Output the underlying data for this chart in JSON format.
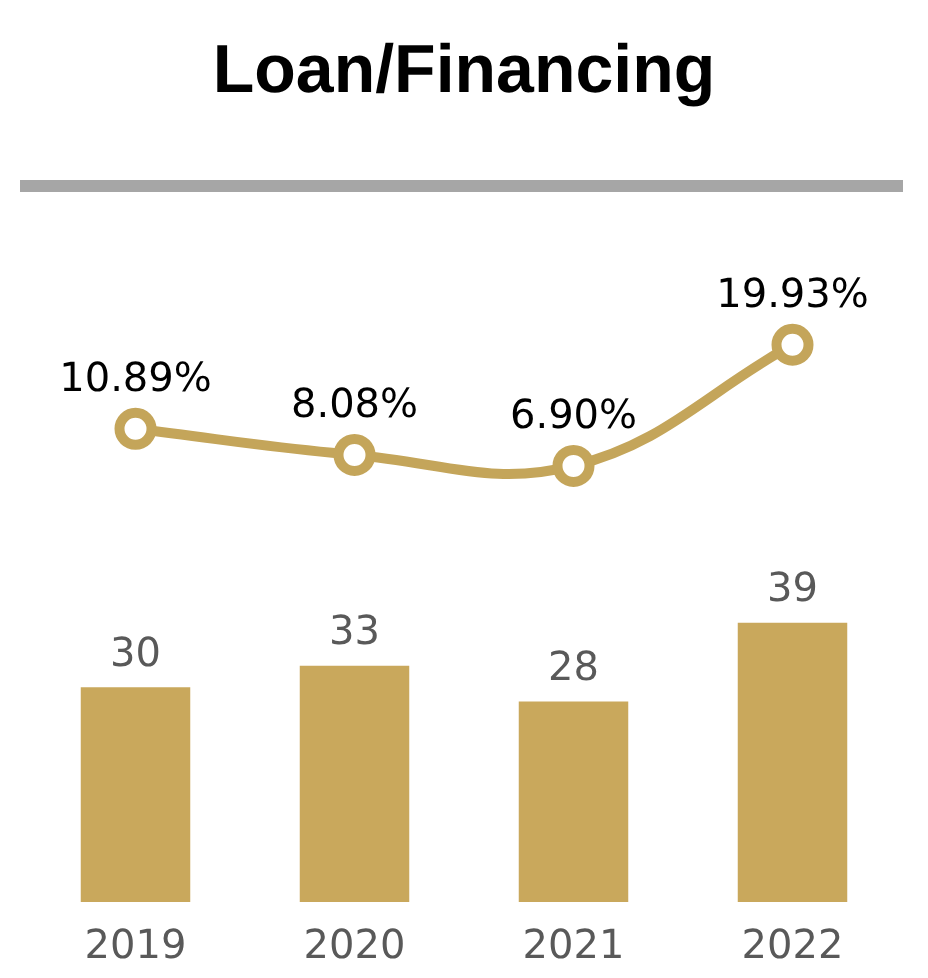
{
  "chart_data": {
    "type": "bar",
    "title": "Loan/Financing",
    "categories": [
      "2019",
      "2020",
      "2021",
      "2022"
    ],
    "data_labels": true,
    "marker": "circle",
    "tick_labels": "x",
    "ylim": [
      0,
      100
    ],
    "y2lim": [
      -40,
      37
    ],
    "series": [
      {
        "color": "#c9a85c",
        "values": [
          30,
          33,
          28,
          39
        ]
      },
      {
        "type": "line",
        "color": "#c4a55a",
        "axis": "y2",
        "values": [
          10.89,
          8.08,
          6.9,
          19.93
        ],
        "value_labels": [
          "10.89%",
          "8.08%",
          "6.90%",
          "19.93%"
        ]
      }
    ]
  }
}
